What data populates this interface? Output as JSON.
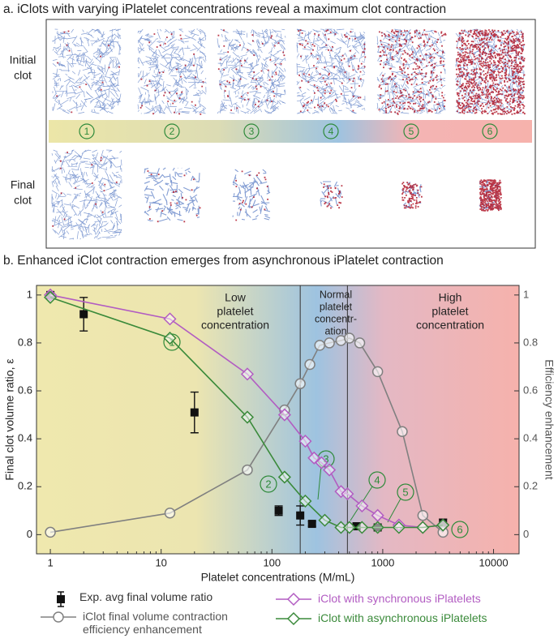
{
  "panel_a": {
    "title": "a. iClots with varying iPlatelet concentrations reveal a maximum clot contraction",
    "row_labels": [
      [
        "Initial",
        "clot"
      ],
      [
        "Final",
        "clot"
      ]
    ],
    "stages": [
      "1",
      "2",
      "3",
      "4",
      "5",
      "6"
    ]
  },
  "chart_data": {
    "type": "line",
    "title": "b. Enhanced iClot contraction emerges from asynchronous iPlatelet contraction",
    "x_label": "Platelet concentrations (M/mL)",
    "y_label": "Final clot volume ratio, ε",
    "y2_label": "Efficiency enhancement",
    "log_x": true,
    "xlim": [
      0.75,
      17000
    ],
    "xticks": [
      1,
      10,
      100,
      1000,
      10000
    ],
    "ylim": [
      -0.08,
      1.04
    ],
    "yticks": [
      0,
      0.2,
      0.4,
      0.6,
      0.8,
      1
    ],
    "y2lim": [
      -0.08,
      1.04
    ],
    "y2ticks": [
      0,
      0.2,
      0.4,
      0.6,
      0.8,
      1
    ],
    "region_bounds": [
      180,
      480
    ],
    "regions": [
      [
        "Low",
        "platelet",
        "concentration"
      ],
      [
        "Normal",
        "platelet",
        "concentr-",
        "ation"
      ],
      [
        "High",
        "platelet",
        "concentration"
      ]
    ],
    "callouts": [
      "1",
      "2",
      "3",
      "4",
      "5",
      "6"
    ],
    "series": [
      {
        "name": "Exp. avg final volume ratio",
        "color": "#111111",
        "marker": "square",
        "x": [
          1,
          2,
          20,
          115,
          180,
          230,
          580,
          900,
          3500
        ],
        "values": [
          1.0,
          0.92,
          0.51,
          0.1,
          0.08,
          0.045,
          0.035,
          0.03,
          0.05
        ],
        "errors": [
          0.01,
          0.07,
          0.085,
          0.02,
          0.04,
          0.01,
          0.01,
          0.01,
          0.015
        ]
      },
      {
        "name": "iClot final volume contraction efficiency enhancement",
        "color": "#808080",
        "marker": "circle",
        "axis": "y2",
        "x": [
          1,
          12,
          60,
          130,
          180,
          220,
          270,
          330,
          420,
          500,
          620,
          900,
          1500,
          2300,
          3500
        ],
        "values": [
          0.01,
          0.09,
          0.27,
          0.52,
          0.63,
          0.71,
          0.79,
          0.8,
          0.81,
          0.82,
          0.8,
          0.68,
          0.43,
          0.08,
          0.01
        ]
      },
      {
        "name": "iClot with synchronous iPlatelets",
        "color": "#b25cc2",
        "marker": "diamond",
        "x": [
          1,
          12,
          60,
          130,
          200,
          240,
          280,
          330,
          420,
          480,
          650,
          900,
          1400,
          2300,
          3500
        ],
        "values": [
          1.0,
          0.9,
          0.67,
          0.5,
          0.39,
          0.32,
          0.3,
          0.27,
          0.18,
          0.17,
          0.12,
          0.08,
          0.04,
          0.03,
          0.04
        ]
      },
      {
        "name": "iClot with asynchronous iPlatelets",
        "color": "#3a8a3a",
        "marker": "diamond",
        "x": [
          1,
          12,
          60,
          130,
          200,
          300,
          420,
          500,
          650,
          900,
          1400,
          2300,
          3500
        ],
        "values": [
          0.99,
          0.82,
          0.49,
          0.24,
          0.14,
          0.06,
          0.03,
          0.03,
          0.03,
          0.03,
          0.03,
          0.03,
          0.04
        ]
      }
    ]
  }
}
